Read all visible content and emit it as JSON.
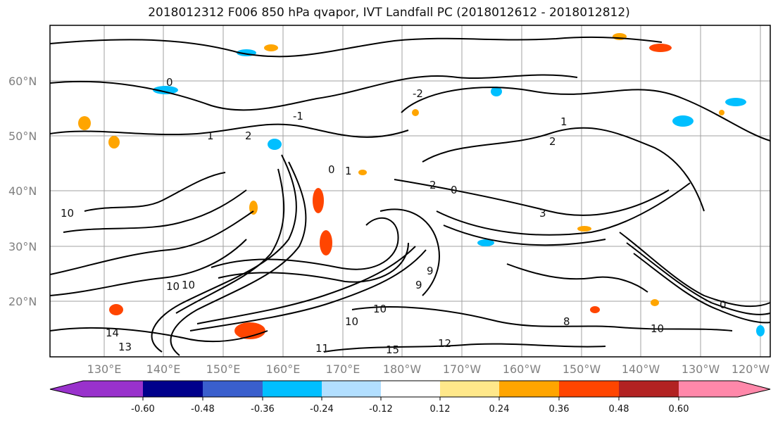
{
  "title": "2018012312 F006 850 hPa qvapor, IVT Landfall PC (2018012612 - 2018012812)",
  "map": {
    "lat_labels": [
      "60°N",
      "50°N",
      "40°N",
      "30°N",
      "20°N"
    ],
    "lon_labels": [
      "130°E",
      "140°E",
      "150°E",
      "160°E",
      "170°E",
      "180°W",
      "170°W",
      "160°W",
      "150°W",
      "140°W",
      "130°W",
      "120°W"
    ],
    "contour_labels": [
      "0",
      "1",
      "2",
      "-2",
      "-1",
      "1",
      "2",
      "0",
      "1",
      "2",
      "3",
      "0",
      "9",
      "10",
      "10",
      "14",
      "13",
      "10",
      "11",
      "12",
      "15",
      "9",
      "8",
      "10",
      "10",
      "0",
      "10"
    ]
  },
  "colorbar": {
    "tick_labels": [
      "-0.60",
      "-0.48",
      "-0.36",
      "-0.24",
      "-0.12",
      "0.12",
      "0.24",
      "0.36",
      "0.48",
      "0.60"
    ],
    "colors": [
      "#9932cc",
      "#00008b",
      "#3a5fcd",
      "#00bfff",
      "#b2dfff",
      "#ffffff",
      "#ffe88a",
      "#ffa500",
      "#ff4500",
      "#b22222",
      "#ff88aa"
    ]
  }
}
